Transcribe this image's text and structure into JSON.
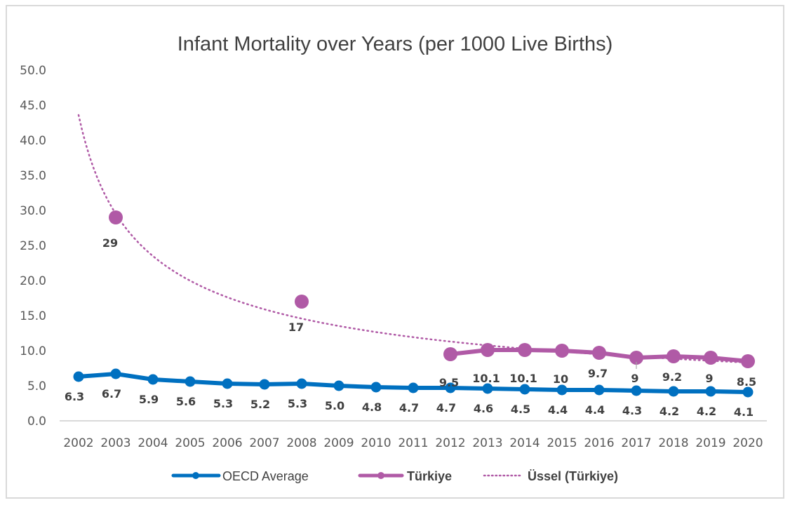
{
  "chart_data": {
    "type": "line",
    "title": "Infant Mortality over Years (per 1000 Live Births)",
    "xlabel": "",
    "ylabel": "",
    "ylim": [
      0,
      50
    ],
    "yticks": [
      "0.0",
      "5.0",
      "10.0",
      "15.0",
      "20.0",
      "25.0",
      "30.0",
      "35.0",
      "40.0",
      "45.0",
      "50.0"
    ],
    "ytick_values": [
      0,
      5,
      10,
      15,
      20,
      25,
      30,
      35,
      40,
      45,
      50
    ],
    "grid": false,
    "legend_position": "bottom",
    "categories": [
      "2002",
      "2003",
      "2004",
      "2005",
      "2006",
      "2007",
      "2008",
      "2009",
      "2010",
      "2011",
      "2012",
      "2013",
      "2014",
      "2015",
      "2016",
      "2017",
      "2018",
      "2019",
      "2020"
    ],
    "series": [
      {
        "name": "OECD Average",
        "color": "#0070C0",
        "values": [
          6.3,
          6.7,
          5.9,
          5.6,
          5.3,
          5.2,
          5.3,
          5.0,
          4.8,
          4.7,
          4.7,
          4.6,
          4.5,
          4.4,
          4.4,
          4.3,
          4.2,
          4.2,
          4.1
        ],
        "labels": [
          "6.3",
          "6.7",
          "5.9",
          "5.6",
          "5.3",
          "5.2",
          "5.3",
          "5.0",
          "4.8",
          "4.7",
          "4.7",
          "4.6",
          "4.5",
          "4.4",
          "4.4",
          "4.3",
          "4.2",
          "4.2",
          "4.1"
        ]
      },
      {
        "name": "Türkiye",
        "color": "#B05AA6",
        "values": [
          null,
          29,
          null,
          null,
          null,
          null,
          17,
          null,
          null,
          null,
          9.5,
          10.1,
          10.1,
          10,
          9.7,
          9,
          9.2,
          9,
          8.5
        ],
        "labels": [
          null,
          "29",
          null,
          null,
          null,
          null,
          "17",
          null,
          null,
          null,
          "9.5",
          "10.1",
          "10.1",
          "10",
          "9.7",
          "9",
          "9.2",
          "9",
          "8.5"
        ]
      },
      {
        "name": "Üssel (Türkiye)",
        "color": "#B05AA6",
        "style": "dotted",
        "trend_type": "power",
        "trend_coefficient": 43.6,
        "trend_exponent": -0.563
      }
    ]
  }
}
